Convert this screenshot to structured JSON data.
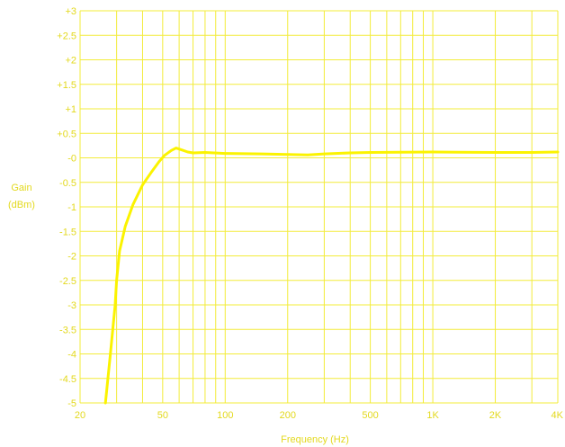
{
  "chart_data": {
    "type": "line",
    "title": "",
    "xlabel": "Frequency (Hz)",
    "ylabel": [
      "Gain",
      "(dBm)"
    ],
    "xscale": "log",
    "xlim": [
      20,
      4000
    ],
    "ylim": [
      -5,
      3
    ],
    "grid": true,
    "colors": {
      "grid": "#f3ec3a",
      "line": "#fbf300",
      "text": "#e3d91e",
      "background": "#ffffff"
    },
    "x_gridlines": [
      20,
      30,
      40,
      50,
      60,
      70,
      80,
      90,
      100,
      200,
      300,
      400,
      500,
      600,
      700,
      800,
      900,
      1000,
      2000,
      3000,
      4000
    ],
    "x_ticks": [
      {
        "value": 20,
        "label": "20"
      },
      {
        "value": 50,
        "label": "50"
      },
      {
        "value": 100,
        "label": "100"
      },
      {
        "value": 200,
        "label": "200"
      },
      {
        "value": 500,
        "label": "500"
      },
      {
        "value": 1000,
        "label": "1K"
      },
      {
        "value": 2000,
        "label": "2K"
      },
      {
        "value": 4000,
        "label": "4K"
      }
    ],
    "y_ticks": [
      {
        "value": 3,
        "label": "+3"
      },
      {
        "value": 2.5,
        "label": "+2.5"
      },
      {
        "value": 2,
        "label": "+2"
      },
      {
        "value": 1.5,
        "label": "+1.5"
      },
      {
        "value": 1,
        "label": "+1"
      },
      {
        "value": 0.5,
        "label": "+0.5"
      },
      {
        "value": 0,
        "label": "-0"
      },
      {
        "value": -0.5,
        "label": "-0.5"
      },
      {
        "value": -1,
        "label": "-1"
      },
      {
        "value": -1.5,
        "label": "-1.5"
      },
      {
        "value": -2,
        "label": "-2"
      },
      {
        "value": -2.5,
        "label": "-2.5"
      },
      {
        "value": -3,
        "label": "-3"
      },
      {
        "value": -3.5,
        "label": "-3.5"
      },
      {
        "value": -4,
        "label": "-4"
      },
      {
        "value": -4.5,
        "label": "-4.5"
      },
      {
        "value": -5,
        "label": "-5"
      }
    ],
    "series": [
      {
        "x": [
          26.5,
          28,
          29.5,
          30,
          31,
          33,
          36,
          40,
          44,
          48,
          51,
          55,
          58,
          62,
          66,
          70,
          80,
          100,
          150,
          200,
          250,
          300,
          400,
          500,
          1000,
          2000,
          3000,
          4000
        ],
        "y": [
          -5.0,
          -4.0,
          -3.0,
          -2.5,
          -1.9,
          -1.4,
          -0.95,
          -0.55,
          -0.3,
          -0.08,
          0.05,
          0.15,
          0.2,
          0.16,
          0.12,
          0.1,
          0.11,
          0.09,
          0.08,
          0.07,
          0.06,
          0.08,
          0.1,
          0.11,
          0.12,
          0.11,
          0.11,
          0.12
        ]
      }
    ]
  }
}
